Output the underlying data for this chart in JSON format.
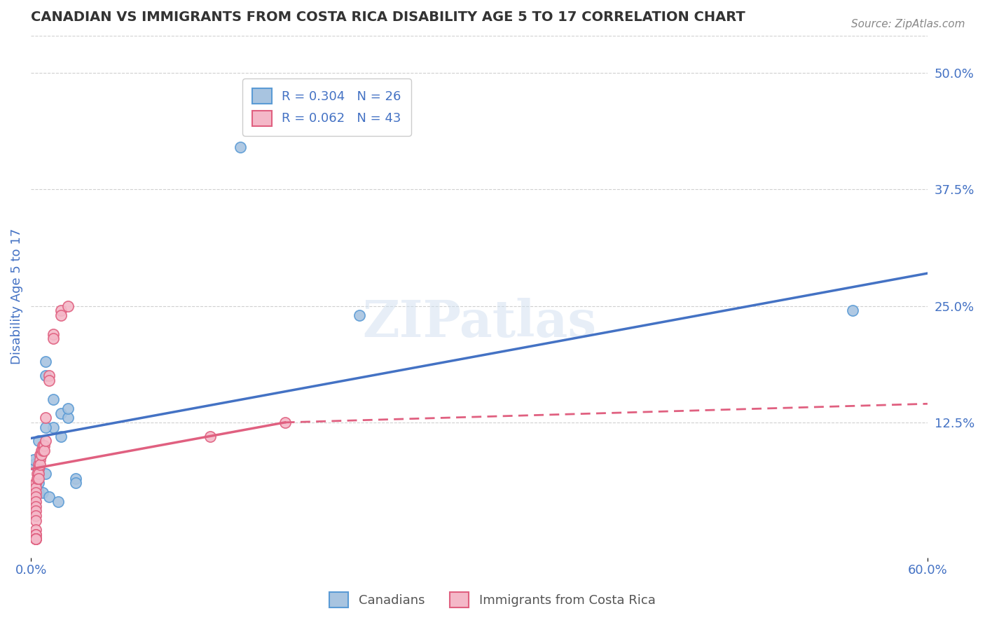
{
  "title": "CANADIAN VS IMMIGRANTS FROM COSTA RICA DISABILITY AGE 5 TO 17 CORRELATION CHART",
  "source": "Source: ZipAtlas.com",
  "xlabel": "",
  "ylabel": "Disability Age 5 to 17",
  "xlim": [
    0.0,
    0.6
  ],
  "ylim": [
    -0.02,
    0.54
  ],
  "x_ticks": [
    0.0,
    0.6
  ],
  "x_tick_labels": [
    "0.0%",
    "60.0%"
  ],
  "y_ticks_right": [
    0.125,
    0.25,
    0.375,
    0.5
  ],
  "y_tick_labels_right": [
    "12.5%",
    "25.0%",
    "37.5%",
    "50.0%"
  ],
  "canadian_color": "#a8c4e0",
  "canadian_edge_color": "#5b9bd5",
  "immigrant_color": "#f4b8c8",
  "immigrant_edge_color": "#e06080",
  "trend_canadian_color": "#4472c4",
  "trend_immigrant_color": "#e06080",
  "legend_R_canadian": "R = 0.304",
  "legend_N_canadian": "N = 26",
  "legend_R_immigrant": "R = 0.062",
  "legend_N_immigrant": "N = 43",
  "watermark": "ZIPatlas",
  "canadian_x": [
    0.02,
    0.025,
    0.01,
    0.005,
    0.005,
    0.01,
    0.03,
    0.03,
    0.025,
    0.015,
    0.02,
    0.015,
    0.005,
    0.005,
    0.008,
    0.012,
    0.018,
    0.22,
    0.01,
    0.01,
    0.005,
    0.005,
    0.002,
    0.002,
    0.55,
    0.14
  ],
  "canadian_y": [
    0.135,
    0.13,
    0.19,
    0.105,
    0.07,
    0.07,
    0.065,
    0.06,
    0.14,
    0.15,
    0.11,
    0.12,
    0.085,
    0.05,
    0.05,
    0.045,
    0.04,
    0.24,
    0.175,
    0.12,
    0.075,
    0.06,
    0.08,
    0.085,
    0.245,
    0.42
  ],
  "immigrant_x": [
    0.003,
    0.003,
    0.003,
    0.003,
    0.003,
    0.003,
    0.003,
    0.003,
    0.003,
    0.003,
    0.003,
    0.003,
    0.003,
    0.003,
    0.003,
    0.003,
    0.003,
    0.004,
    0.004,
    0.005,
    0.005,
    0.005,
    0.005,
    0.006,
    0.006,
    0.006,
    0.007,
    0.007,
    0.008,
    0.008,
    0.009,
    0.009,
    0.01,
    0.01,
    0.012,
    0.012,
    0.015,
    0.015,
    0.02,
    0.02,
    0.025,
    0.17,
    0.12
  ],
  "immigrant_y": [
    0.06,
    0.06,
    0.055,
    0.05,
    0.045,
    0.04,
    0.035,
    0.03,
    0.025,
    0.02,
    0.01,
    0.005,
    0.005,
    0.0,
    0.0,
    0.0,
    0.0,
    0.07,
    0.065,
    0.08,
    0.075,
    0.07,
    0.065,
    0.09,
    0.085,
    0.08,
    0.095,
    0.09,
    0.1,
    0.095,
    0.1,
    0.095,
    0.105,
    0.13,
    0.175,
    0.17,
    0.22,
    0.215,
    0.245,
    0.24,
    0.25,
    0.125,
    0.11
  ],
  "background_color": "#ffffff",
  "grid_color": "#d0d0d0",
  "title_color": "#333333",
  "axis_label_color": "#4472c4",
  "tick_label_color": "#4472c4"
}
